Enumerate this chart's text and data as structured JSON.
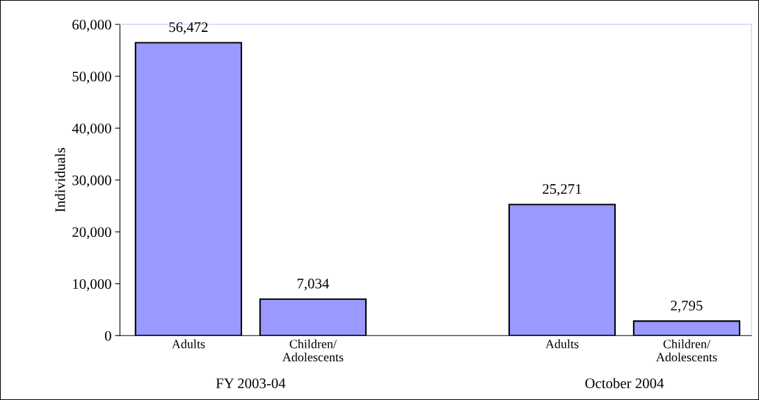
{
  "chart_data": {
    "type": "bar",
    "ylabel": "Individuals",
    "categories": [
      "Adults",
      "Children/\nAdolescents",
      null,
      "Adults",
      "Children/\nAdolescents"
    ],
    "values": [
      56472,
      7034,
      null,
      25271,
      2795
    ],
    "color": "#9999ff",
    "ylim": [
      0,
      60000
    ],
    "yticks": [
      0,
      {
        "value": 10000,
        "label": "10,000"
      },
      {
        "value": 20000,
        "label": "20,000"
      },
      {
        "value": 30000,
        "label": "30,000"
      },
      {
        "value": 40000,
        "label": "40,000"
      },
      {
        "value": 50000,
        "label": "50,000"
      },
      {
        "value": 60000,
        "label": "60,000"
      }
    ],
    "value_labels": [
      "56,472",
      "7,034",
      null,
      "25,271",
      "2,795"
    ],
    "grid": false,
    "legend": false,
    "annotations": [
      "FY 2003-04",
      "October 2004"
    ]
  }
}
